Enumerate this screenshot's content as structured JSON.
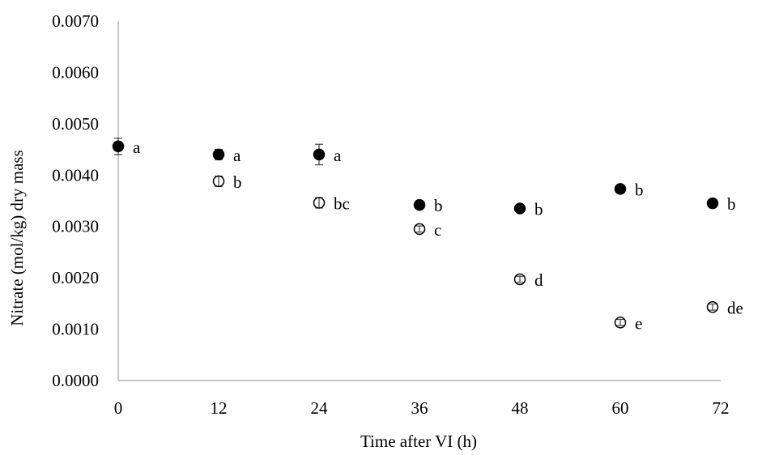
{
  "chart_data": {
    "type": "scatter",
    "title": "",
    "xlabel": "Time after VI (h)",
    "ylabel": "Nitrate (mol/kg) dry mass",
    "xlim": [
      0,
      72
    ],
    "ylim": [
      0,
      0.007
    ],
    "x_ticks": [
      0,
      12,
      24,
      36,
      48,
      60,
      72
    ],
    "x_tick_labels": [
      "0",
      "12",
      "24",
      "36",
      "48",
      "60",
      "72"
    ],
    "y_ticks": [
      0,
      0.001,
      0.002,
      0.003,
      0.004,
      0.005,
      0.006,
      0.007
    ],
    "y_tick_labels": [
      "0.0000",
      "0.0010",
      "0.0020",
      "0.0030",
      "0.0040",
      "0.0050",
      "0.0060",
      "0.0070"
    ],
    "grid": false,
    "legend": "none",
    "colors": {
      "filled": "#000000",
      "open": "#ffffff",
      "axis": "#a6a6a6"
    },
    "series": [
      {
        "marker": "filled-circle",
        "points": [
          {
            "x": 0,
            "y": 0.00456,
            "err": 0.00016,
            "label": "a"
          },
          {
            "x": 12,
            "y": 0.0044,
            "err": 0.0001,
            "label": "a"
          },
          {
            "x": 24,
            "y": 0.0044,
            "err": 0.0002,
            "label": "a"
          },
          {
            "x": 36,
            "y": 0.00342,
            "err": 4e-05,
            "label": "b"
          },
          {
            "x": 48,
            "y": 0.00335,
            "err": 3e-05,
            "label": "b"
          },
          {
            "x": 60,
            "y": 0.00373,
            "err": 3e-05,
            "label": "b"
          },
          {
            "x": 72,
            "y": 0.00345,
            "err": 3e-05,
            "label": "b"
          }
        ]
      },
      {
        "marker": "open-circle",
        "points": [
          {
            "x": 12,
            "y": 0.00388,
            "err": 0.0001,
            "label": "b"
          },
          {
            "x": 24,
            "y": 0.00346,
            "err": 0.0001,
            "label": "bc"
          },
          {
            "x": 36,
            "y": 0.00295,
            "err": 6e-05,
            "label": "c"
          },
          {
            "x": 48,
            "y": 0.00197,
            "err": 6e-05,
            "label": "d"
          },
          {
            "x": 60,
            "y": 0.00113,
            "err": 6e-05,
            "label": "e"
          },
          {
            "x": 72,
            "y": 0.00143,
            "err": 6e-05,
            "label": "de"
          }
        ]
      }
    ]
  }
}
